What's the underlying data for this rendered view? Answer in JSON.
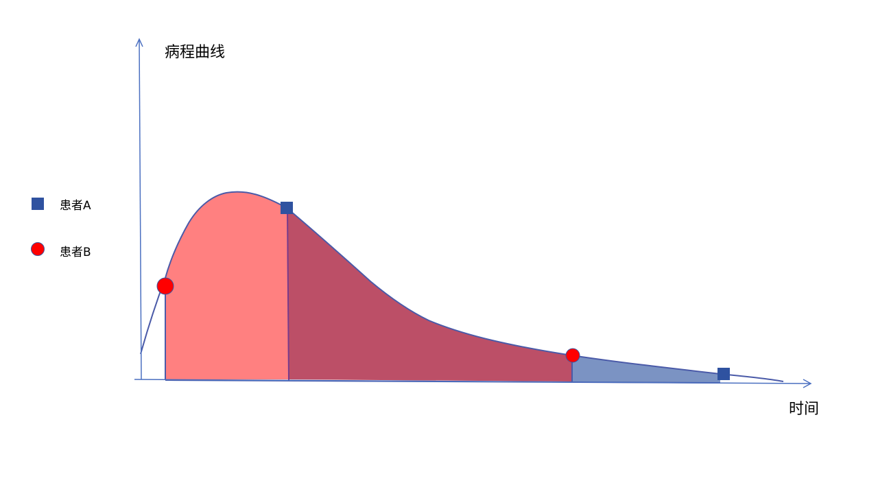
{
  "diagram": {
    "y_axis_label": "病程曲线",
    "x_axis_label": "时间"
  },
  "legend": [
    {
      "label": "患者A",
      "marker": "square",
      "color": "#2f52a0"
    },
    {
      "label": "患者B",
      "marker": "circle",
      "color": "#ff0000"
    }
  ],
  "colors": {
    "axis": "#4a6fc0",
    "curve": "#4a5aa8",
    "region_early": "#ff8080",
    "region_middle": "#bc4f67",
    "region_late": "#7b93c3",
    "patient_a": "#2f52a0",
    "patient_b": "#ff0000"
  }
}
